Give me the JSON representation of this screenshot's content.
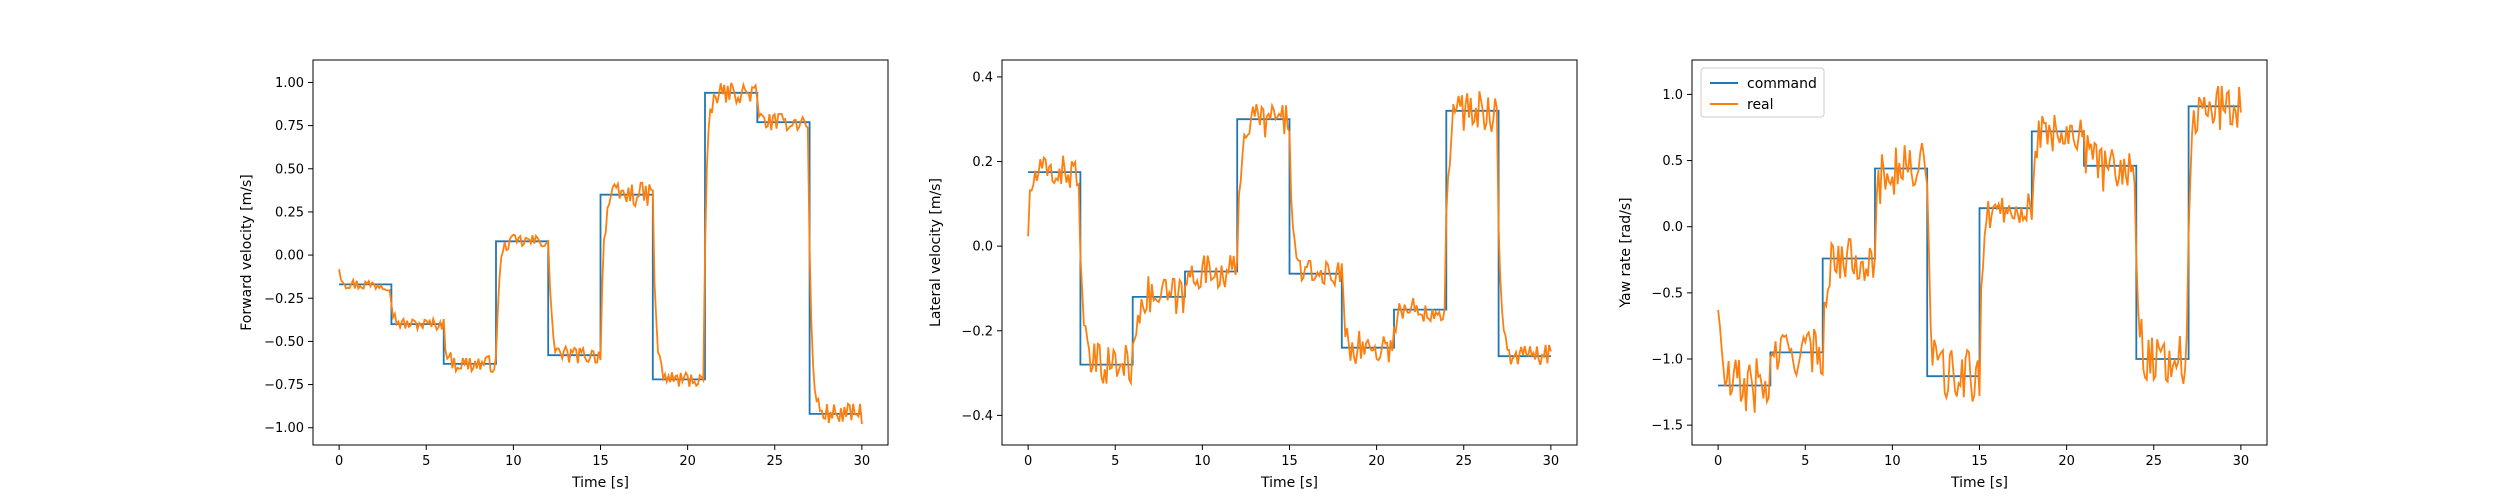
{
  "chart_data": [
    {
      "type": "line",
      "xlabel": "Time [s]",
      "ylabel": "Forward velocity [m/s]",
      "xlim": [
        -1.5,
        31.5
      ],
      "ylim": [
        -1.1,
        1.13
      ],
      "xticks": [
        0,
        5,
        10,
        15,
        20,
        25,
        30
      ],
      "yticks": [
        -1.0,
        -0.75,
        -0.5,
        -0.25,
        0.0,
        0.25,
        0.5,
        0.75,
        1.0
      ],
      "ytick_labels": [
        "−1.00",
        "−0.75",
        "−0.50",
        "−0.25",
        "0.00",
        "0.25",
        "0.50",
        "0.75",
        "1.00"
      ],
      "grid": false,
      "legend": null,
      "command_steps": [
        [
          0,
          3,
          -0.17
        ],
        [
          3,
          6,
          -0.4
        ],
        [
          6,
          9,
          -0.63
        ],
        [
          9,
          12,
          0.08
        ],
        [
          12,
          15,
          -0.58
        ],
        [
          15,
          18,
          0.35
        ],
        [
          18,
          21,
          -0.72
        ],
        [
          21,
          24,
          0.94
        ],
        [
          24,
          27,
          0.77
        ],
        [
          27,
          30,
          -0.92
        ]
      ],
      "real_start": 0.02,
      "real_noise": [
        0.035,
        0.035,
        0.05,
        0.04,
        0.05,
        0.07,
        0.05,
        0.06,
        0.05,
        0.06
      ]
    },
    {
      "type": "line",
      "xlabel": "Time [s]",
      "ylabel": "Lateral velocity [m/s]",
      "xlim": [
        -1.5,
        31.5
      ],
      "ylim": [
        -0.47,
        0.44
      ],
      "xticks": [
        0,
        5,
        10,
        15,
        20,
        25,
        30
      ],
      "yticks": [
        -0.4,
        -0.2,
        0.0,
        0.2,
        0.4
      ],
      "ytick_labels": [
        "−0.4",
        "−0.2",
        "0.0",
        "0.2",
        "0.4"
      ],
      "grid": false,
      "legend": null,
      "command_steps": [
        [
          0,
          3,
          0.175
        ],
        [
          3,
          6,
          -0.28
        ],
        [
          6,
          9,
          -0.12
        ],
        [
          9,
          12,
          -0.06
        ],
        [
          12,
          15,
          0.3
        ],
        [
          15,
          18,
          -0.065
        ],
        [
          18,
          21,
          -0.24
        ],
        [
          21,
          24,
          -0.15
        ],
        [
          24,
          27,
          0.32
        ],
        [
          27,
          30,
          -0.26
        ]
      ],
      "real_start": -0.07,
      "real_noise": [
        0.04,
        0.05,
        0.05,
        0.04,
        0.045,
        0.03,
        0.04,
        0.03,
        0.05,
        0.03
      ]
    },
    {
      "type": "line",
      "xlabel": "Time [s]",
      "ylabel": "Yaw rate [rad/s]",
      "xlim": [
        -1.5,
        31.5
      ],
      "ylim": [
        -1.65,
        1.26
      ],
      "xticks": [
        0,
        5,
        10,
        15,
        20,
        25,
        30
      ],
      "yticks": [
        -1.5,
        -1.0,
        -0.5,
        0.0,
        0.5,
        1.0
      ],
      "ytick_labels": [
        "−1.5",
        "−1.0",
        "−0.5",
        "0.0",
        "0.5",
        "1.0"
      ],
      "grid": false,
      "legend": "top-left",
      "command_steps": [
        [
          0,
          3,
          -1.2
        ],
        [
          3,
          6,
          -0.95
        ],
        [
          6,
          9,
          -0.24
        ],
        [
          9,
          12,
          0.44
        ],
        [
          12,
          15,
          -1.13
        ],
        [
          15,
          18,
          0.14
        ],
        [
          18,
          21,
          0.72
        ],
        [
          21,
          24,
          0.46
        ],
        [
          24,
          27,
          -1.0
        ],
        [
          27,
          30,
          0.91
        ]
      ],
      "real_start": 0.0,
      "real_noise": [
        0.22,
        0.18,
        0.17,
        0.2,
        0.2,
        0.12,
        0.15,
        0.2,
        0.2,
        0.18
      ]
    }
  ],
  "legend": {
    "entries": [
      {
        "name": "command",
        "color": "#1f77b4"
      },
      {
        "name": "real",
        "color": "#ff7f0e"
      }
    ]
  },
  "colors": {
    "command": "#1f77b4",
    "real": "#ff7f0e"
  }
}
